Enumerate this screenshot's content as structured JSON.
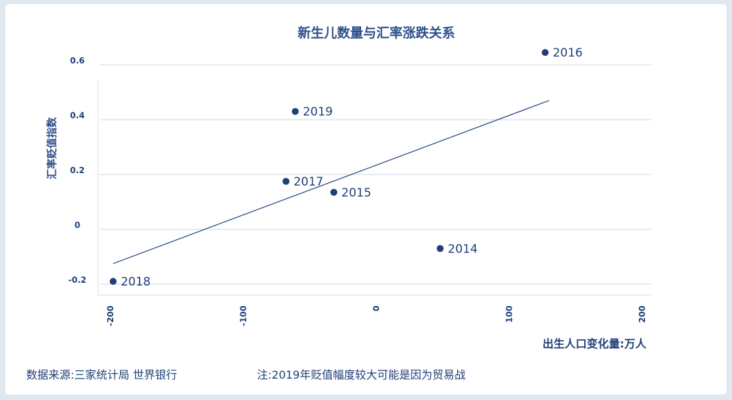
{
  "chart_data": {
    "type": "scatter",
    "title": "新生儿数量与汇率涨跌关系",
    "xlabel": "出生人口变化量:万人",
    "ylabel": "汇率贬值指数",
    "xlim": [
      -205,
      205
    ],
    "ylim": [
      -0.22,
      0.6
    ],
    "xticks": [
      "-200",
      "-100",
      "0",
      "100",
      "200"
    ],
    "yticks": [
      "0.6",
      "0.4",
      "0.2",
      "0",
      "-0.2"
    ],
    "points": [
      {
        "label": "2014",
        "x": 48,
        "y": -0.07
      },
      {
        "label": "2015",
        "x": -32,
        "y": 0.135
      },
      {
        "label": "2016",
        "x": 127,
        "y": 0.645
      },
      {
        "label": "2017",
        "x": -68,
        "y": 0.175
      },
      {
        "label": "2018",
        "x": -198,
        "y": -0.19
      },
      {
        "label": "2019",
        "x": -61,
        "y": 0.43
      }
    ],
    "trendline": [
      {
        "x": -198,
        "y": -0.125
      },
      {
        "x": 130,
        "y": 0.47
      }
    ],
    "grid": true
  },
  "footer": {
    "source": "数据来源:三家统计局 世界银行",
    "note": "注:2019年贬值幅度较大可能是因为贸易战"
  }
}
